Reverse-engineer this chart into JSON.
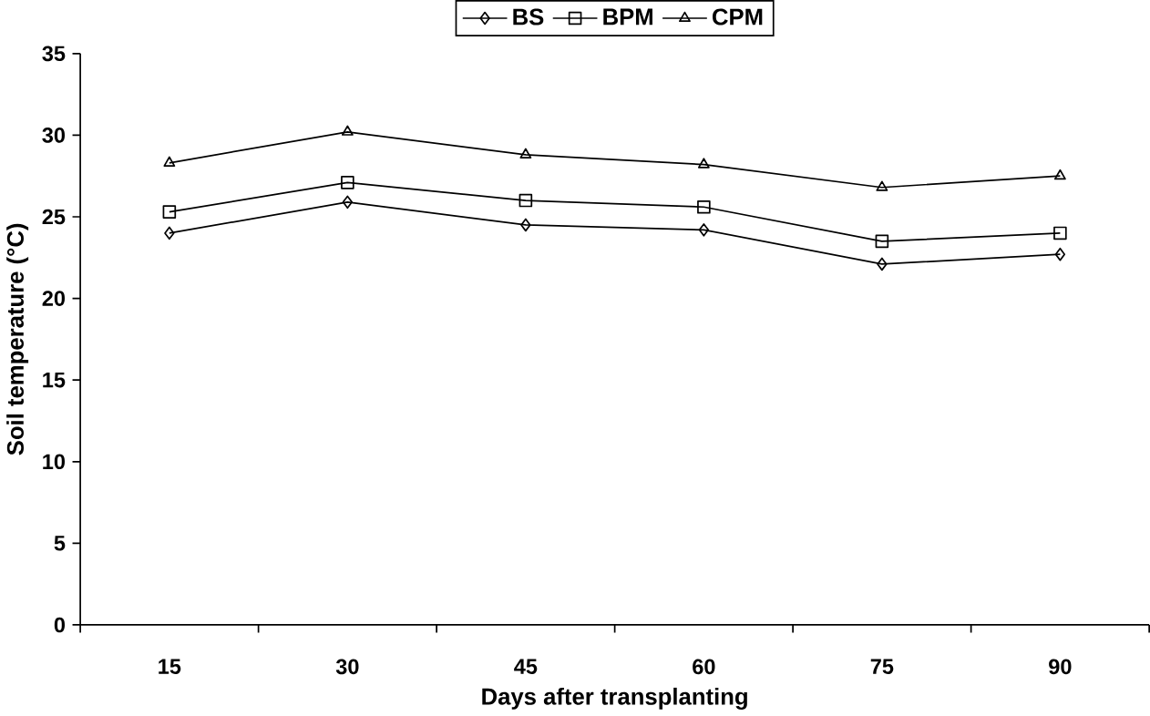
{
  "chart_data": {
    "type": "line",
    "xlabel": "Days after transplanting",
    "ylabel": "Soil temperature (°C)",
    "categories": [
      "15",
      "30",
      "45",
      "60",
      "75",
      "90"
    ],
    "series": [
      {
        "name": "BS",
        "color": "#000000",
        "marker": "diamond",
        "values": [
          24.0,
          25.9,
          24.5,
          24.2,
          22.1,
          22.7
        ]
      },
      {
        "name": "BPM",
        "color": "#000000",
        "marker": "square",
        "values": [
          25.3,
          27.1,
          26.0,
          25.6,
          23.5,
          24.0
        ]
      },
      {
        "name": "CPM",
        "color": "#000000",
        "marker": "triangle",
        "values": [
          28.3,
          30.2,
          28.8,
          28.2,
          26.8,
          27.5
        ]
      }
    ],
    "ylim": [
      0,
      35
    ],
    "yticks": [
      0,
      5,
      10,
      15,
      20,
      25,
      30,
      35
    ],
    "grid": false,
    "legend": "top",
    "line_style": "solid"
  }
}
